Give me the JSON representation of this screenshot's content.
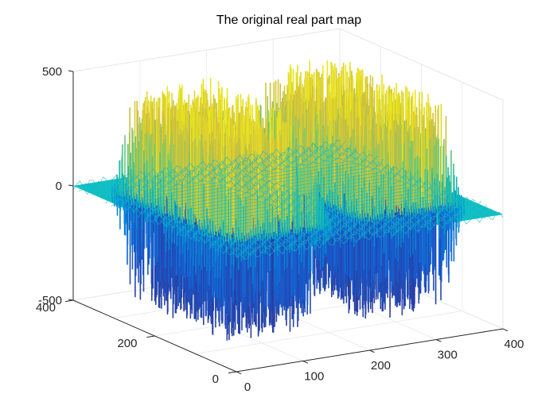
{
  "chart_data": {
    "type": "surface3d",
    "title": "The original real part map",
    "xlabel": "",
    "ylabel": "",
    "zlabel": "",
    "xlim": [
      0,
      400
    ],
    "ylim": [
      0,
      400
    ],
    "zlim": [
      -500,
      500
    ],
    "x_ticks": [
      "0",
      "100",
      "200",
      "300",
      "400"
    ],
    "y_ticks": [
      "0",
      "200",
      "400"
    ],
    "z_ticks": [
      "-500",
      "0",
      "500"
    ],
    "grid": true,
    "colormap": "parula",
    "baseline_color": "#10c0c4",
    "lobes": [
      {
        "x_range": [
          0,
          200
        ],
        "y_range": [
          50,
          350
        ],
        "z_max": 480,
        "z_min": -480
      },
      {
        "x_range": [
          200,
          400
        ],
        "y_range": [
          50,
          350
        ],
        "z_max": 480,
        "z_min": -480
      }
    ]
  }
}
